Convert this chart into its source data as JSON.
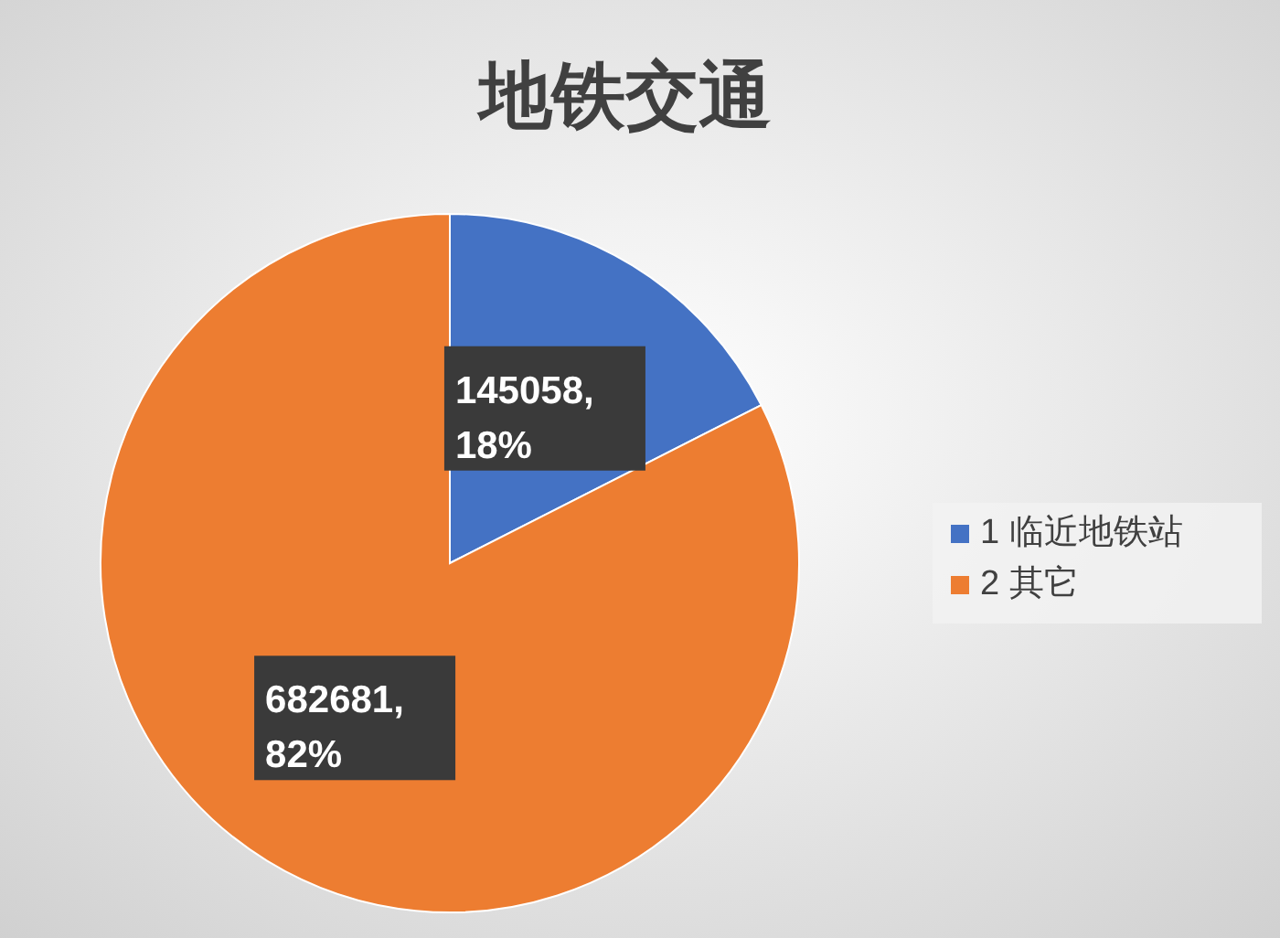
{
  "chart_data": {
    "type": "pie",
    "title": "地铁交通",
    "categories": [
      "1 临近地铁站",
      "2 其它"
    ],
    "values": [
      145058,
      682681
    ],
    "colors": [
      "#4472c4",
      "#ed7d31"
    ],
    "value_labels": [
      "145058, 18%",
      "682681, 82%"
    ],
    "legend": "right"
  }
}
